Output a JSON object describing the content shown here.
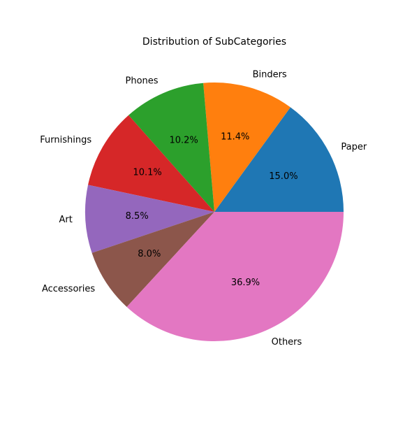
{
  "chart_data": {
    "type": "pie",
    "title": "Distribution of SubCategories",
    "categories": [
      "Paper",
      "Binders",
      "Phones",
      "Furnishings",
      "Art",
      "Accessories",
      "Others"
    ],
    "values": [
      15.0,
      11.4,
      10.2,
      10.1,
      8.5,
      8.0,
      36.9
    ],
    "value_labels": [
      "15.0%",
      "11.4%",
      "10.2%",
      "10.1%",
      "8.5%",
      "8.0%",
      "36.9%"
    ],
    "colors": [
      "#1f77b4",
      "#ff7f0e",
      "#2ca02c",
      "#d62728",
      "#9467bd",
      "#8c564b",
      "#e377c2"
    ],
    "start_angle_deg": 0,
    "direction": "counterclockwise",
    "legend": "none"
  }
}
